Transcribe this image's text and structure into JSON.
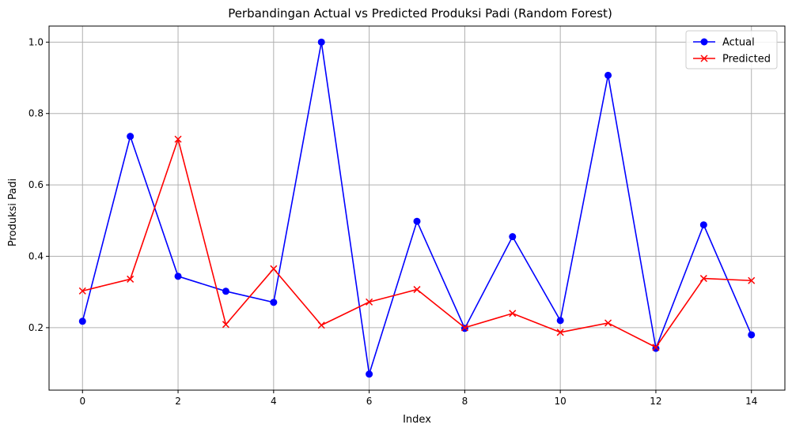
{
  "chart_data": {
    "type": "line",
    "title": "Perbandingan Actual vs Predicted Produksi Padi (Random Forest)",
    "xlabel": "Index",
    "ylabel": "Produksi Padi",
    "x": [
      0,
      1,
      2,
      3,
      4,
      5,
      6,
      7,
      8,
      9,
      10,
      11,
      12,
      13,
      14
    ],
    "xlim": [
      -0.7,
      14.7
    ],
    "ylim": [
      0.025,
      1.045
    ],
    "x_ticks": [
      0,
      2,
      4,
      6,
      8,
      10,
      12,
      14
    ],
    "x_tick_labels": [
      "0",
      "2",
      "4",
      "6",
      "8",
      "10",
      "12",
      "14"
    ],
    "y_ticks": [
      0.2,
      0.4,
      0.6,
      0.8,
      1.0
    ],
    "y_tick_labels": [
      "0.2",
      "0.4",
      "0.6",
      "0.8",
      "1.0"
    ],
    "grid": true,
    "legend_position": "top-right",
    "series": [
      {
        "name": "Actual",
        "color": "#0000ff",
        "marker": "circle",
        "values": [
          0.218,
          0.736,
          0.344,
          0.302,
          0.271,
          1.0,
          0.07,
          0.498,
          0.198,
          0.455,
          0.22,
          0.907,
          0.142,
          0.488,
          0.18
        ]
      },
      {
        "name": "Predicted",
        "color": "#ff0000",
        "marker": "x",
        "values": [
          0.303,
          0.336,
          0.728,
          0.209,
          0.365,
          0.207,
          0.272,
          0.307,
          0.2,
          0.24,
          0.187,
          0.213,
          0.145,
          0.338,
          0.332
        ]
      }
    ]
  }
}
